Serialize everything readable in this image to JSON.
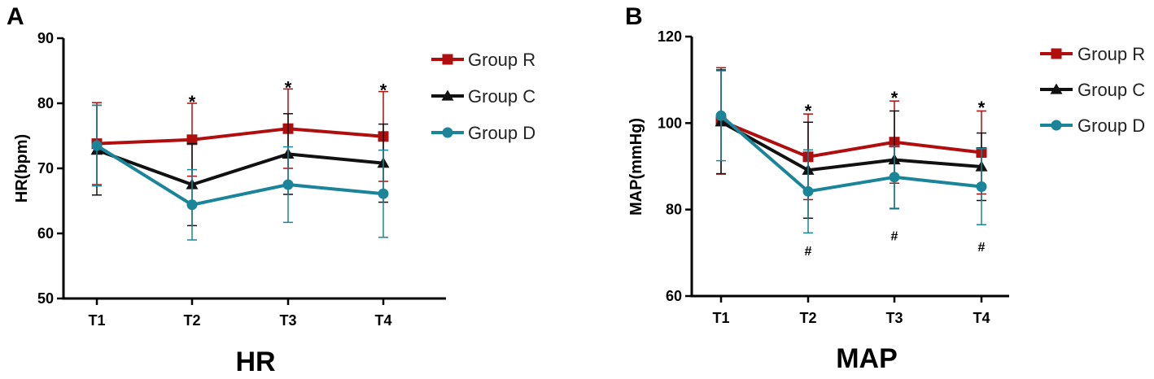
{
  "chart_data": [
    {
      "type": "line",
      "panel": "A",
      "title": "HR",
      "xlabel": "HR",
      "ylabel": "HR(bpm)",
      "categories": [
        "T1",
        "T2",
        "T3",
        "T4"
      ],
      "ylim": [
        50,
        90
      ],
      "yticks": [
        50,
        60,
        70,
        80,
        90
      ],
      "series": [
        {
          "name": "Group R",
          "color": "#b00e0e",
          "marker": "square",
          "values": [
            73.8,
            74.4,
            76.1,
            74.9
          ],
          "errors": [
            6.3,
            5.6,
            6.1,
            6.9
          ]
        },
        {
          "name": "Group C",
          "color": "#111111",
          "marker": "triangle",
          "values": [
            72.8,
            67.5,
            72.2,
            70.8
          ],
          "errors": [
            6.9,
            6.3,
            6.2,
            6.0
          ]
        },
        {
          "name": "Group D",
          "color": "#1a8598",
          "marker": "circle",
          "values": [
            73.5,
            64.4,
            67.5,
            66.1
          ],
          "errors": [
            6.2,
            5.4,
            5.8,
            6.7
          ]
        }
      ],
      "annotations": [
        {
          "category": "T2",
          "text": "*",
          "value": 81.0
        },
        {
          "category": "T3",
          "text": "*",
          "value": 83.2
        },
        {
          "category": "T4",
          "text": "*",
          "value": 82.8
        }
      ]
    },
    {
      "type": "line",
      "panel": "B",
      "title": "MAP",
      "xlabel": "MAP",
      "ylabel": "MAP(mmHg)",
      "categories": [
        "T1",
        "T2",
        "T3",
        "T4"
      ],
      "ylim": [
        60,
        120
      ],
      "yticks": [
        60,
        80,
        100,
        120
      ],
      "series": [
        {
          "name": "Group R",
          "color": "#b00e0e",
          "marker": "square",
          "values": [
            100.5,
            92.2,
            95.6,
            93.2
          ],
          "errors": [
            12.3,
            9.9,
            9.5,
            9.6
          ]
        },
        {
          "name": "Group C",
          "color": "#111111",
          "marker": "triangle",
          "values": [
            100.3,
            89.1,
            91.5,
            89.9
          ],
          "errors": [
            12.0,
            11.1,
            11.3,
            7.8
          ]
        },
        {
          "name": "Group D",
          "color": "#1a8598",
          "marker": "circle",
          "values": [
            101.7,
            84.2,
            87.5,
            85.3
          ],
          "errors": [
            10.4,
            9.6,
            7.2,
            8.8
          ]
        }
      ],
      "annotations": [
        {
          "category": "T2",
          "text": "*",
          "value": 104.0
        },
        {
          "category": "T3",
          "text": "*",
          "value": 107.0
        },
        {
          "category": "T4",
          "text": "*",
          "value": 104.8
        },
        {
          "category": "T2",
          "text": "#",
          "value": 70.5
        },
        {
          "category": "T3",
          "text": "#",
          "value": 74.0
        },
        {
          "category": "T4",
          "text": "#",
          "value": 71.5
        }
      ]
    }
  ]
}
